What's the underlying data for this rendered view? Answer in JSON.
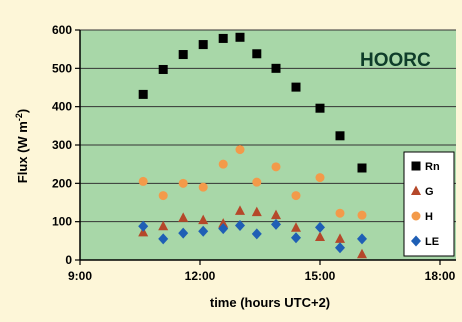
{
  "chart_data": {
    "type": "scatter",
    "label": "HOORC",
    "xlabel": "time (hours UTC+2)",
    "ylabel": "Flux (W m",
    "ylabel_sup": "-2",
    "ylabel_end": ")",
    "x_ticks": [
      "9:00",
      "12:00",
      "15:00",
      "18:00"
    ],
    "x_tick_values": [
      9,
      12,
      15,
      18
    ],
    "xlim": [
      9,
      18
    ],
    "y_ticks": [
      0,
      100,
      200,
      300,
      400,
      500,
      600
    ],
    "ylim": [
      0,
      600
    ],
    "grid": "horizontal",
    "legend_position": "right",
    "series": [
      {
        "name": "Rn",
        "marker": "square",
        "color": "#000000",
        "points": [
          {
            "x": 10.58,
            "y": 432
          },
          {
            "x": 11.08,
            "y": 497
          },
          {
            "x": 11.58,
            "y": 536
          },
          {
            "x": 12.08,
            "y": 562
          },
          {
            "x": 12.58,
            "y": 578
          },
          {
            "x": 13.0,
            "y": 581
          },
          {
            "x": 13.42,
            "y": 538
          },
          {
            "x": 13.9,
            "y": 500
          },
          {
            "x": 14.4,
            "y": 451
          },
          {
            "x": 15.0,
            "y": 396
          },
          {
            "x": 15.5,
            "y": 324
          },
          {
            "x": 16.05,
            "y": 240
          }
        ]
      },
      {
        "name": "G",
        "marker": "triangle",
        "color": "#b5482a",
        "points": [
          {
            "x": 10.58,
            "y": 72
          },
          {
            "x": 11.08,
            "y": 88
          },
          {
            "x": 11.58,
            "y": 110
          },
          {
            "x": 12.08,
            "y": 104
          },
          {
            "x": 12.58,
            "y": 95
          },
          {
            "x": 13.0,
            "y": 128
          },
          {
            "x": 13.42,
            "y": 125
          },
          {
            "x": 13.9,
            "y": 117
          },
          {
            "x": 14.4,
            "y": 84
          },
          {
            "x": 15.0,
            "y": 60
          },
          {
            "x": 15.5,
            "y": 55
          },
          {
            "x": 16.05,
            "y": 15
          }
        ]
      },
      {
        "name": "H",
        "marker": "circle",
        "color": "#f39a4a",
        "points": [
          {
            "x": 10.58,
            "y": 205
          },
          {
            "x": 11.08,
            "y": 168
          },
          {
            "x": 11.58,
            "y": 200
          },
          {
            "x": 12.08,
            "y": 190
          },
          {
            "x": 12.58,
            "y": 250
          },
          {
            "x": 13.0,
            "y": 288
          },
          {
            "x": 13.42,
            "y": 203
          },
          {
            "x": 13.9,
            "y": 243
          },
          {
            "x": 14.4,
            "y": 168
          },
          {
            "x": 15.0,
            "y": 215
          },
          {
            "x": 15.5,
            "y": 122
          },
          {
            "x": 16.05,
            "y": 117
          }
        ]
      },
      {
        "name": "LE",
        "marker": "diamond",
        "color": "#1f5fb5",
        "points": [
          {
            "x": 10.58,
            "y": 88
          },
          {
            "x": 11.08,
            "y": 55
          },
          {
            "x": 11.58,
            "y": 70
          },
          {
            "x": 12.08,
            "y": 75
          },
          {
            "x": 12.58,
            "y": 82
          },
          {
            "x": 13.0,
            "y": 90
          },
          {
            "x": 13.42,
            "y": 68
          },
          {
            "x": 13.9,
            "y": 93
          },
          {
            "x": 14.4,
            "y": 58
          },
          {
            "x": 15.0,
            "y": 85
          },
          {
            "x": 15.5,
            "y": 32
          },
          {
            "x": 16.05,
            "y": 55
          }
        ]
      }
    ]
  }
}
